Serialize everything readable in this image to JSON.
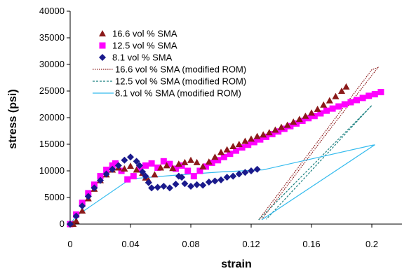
{
  "chart_data": {
    "type": "scatter",
    "xlabel": "strain",
    "ylabel": "stress (psi)",
    "xlim": [
      0,
      0.22
    ],
    "ylim": [
      0,
      40000
    ],
    "x_ticks": [
      "0",
      "0.04",
      "0.08",
      "0.12",
      "0.16",
      "0.2"
    ],
    "y_ticks": [
      "0",
      "5000",
      "10000",
      "15000",
      "20000",
      "25000",
      "30000",
      "35000",
      "40000"
    ],
    "grid": false,
    "legend_position": "top-left",
    "series": [
      {
        "name": "16.6 vol % SMA",
        "kind": "markers",
        "marker": "triangle",
        "color": "#8b1a1a",
        "points": [
          [
            0.002,
            0
          ],
          [
            0.004,
            600
          ],
          [
            0.008,
            2500
          ],
          [
            0.012,
            4800
          ],
          [
            0.016,
            6600
          ],
          [
            0.02,
            8200
          ],
          [
            0.024,
            9300
          ],
          [
            0.028,
            10200
          ],
          [
            0.032,
            10600
          ],
          [
            0.036,
            10400
          ],
          [
            0.04,
            10900
          ],
          [
            0.044,
            10200
          ],
          [
            0.048,
            9600
          ],
          [
            0.05,
            8700
          ],
          [
            0.052,
            8200
          ],
          [
            0.056,
            9300
          ],
          [
            0.06,
            10600
          ],
          [
            0.064,
            11000
          ],
          [
            0.068,
            10500
          ],
          [
            0.072,
            11300
          ],
          [
            0.076,
            11600
          ],
          [
            0.08,
            12000
          ],
          [
            0.084,
            11600
          ],
          [
            0.088,
            10800
          ],
          [
            0.092,
            11700
          ],
          [
            0.096,
            12600
          ],
          [
            0.1,
            13500
          ],
          [
            0.104,
            14000
          ],
          [
            0.108,
            14600
          ],
          [
            0.112,
            15000
          ],
          [
            0.116,
            15600
          ],
          [
            0.12,
            16000
          ],
          [
            0.124,
            16500
          ],
          [
            0.128,
            16800
          ],
          [
            0.132,
            17200
          ],
          [
            0.136,
            17700
          ],
          [
            0.14,
            18200
          ],
          [
            0.144,
            18600
          ],
          [
            0.148,
            19200
          ],
          [
            0.152,
            19700
          ],
          [
            0.156,
            20300
          ],
          [
            0.16,
            20900
          ],
          [
            0.164,
            21600
          ],
          [
            0.168,
            22400
          ],
          [
            0.172,
            23200
          ],
          [
            0.176,
            24000
          ],
          [
            0.18,
            25000
          ],
          [
            0.183,
            25800
          ]
        ]
      },
      {
        "name": "12.5 vol % SMA",
        "kind": "markers",
        "marker": "square",
        "color": "#ff00ff",
        "points": [
          [
            0,
            0
          ],
          [
            0.004,
            1800
          ],
          [
            0.008,
            4000
          ],
          [
            0.012,
            5800
          ],
          [
            0.016,
            7400
          ],
          [
            0.02,
            9000
          ],
          [
            0.024,
            10200
          ],
          [
            0.028,
            11000
          ],
          [
            0.03,
            11400
          ],
          [
            0.034,
            10000
          ],
          [
            0.038,
            8400
          ],
          [
            0.042,
            9000
          ],
          [
            0.046,
            10400
          ],
          [
            0.05,
            11000
          ],
          [
            0.054,
            11400
          ],
          [
            0.058,
            10600
          ],
          [
            0.062,
            11800
          ],
          [
            0.066,
            11300
          ],
          [
            0.07,
            10400
          ],
          [
            0.074,
            11000
          ],
          [
            0.078,
            10000
          ],
          [
            0.082,
            9000
          ],
          [
            0.086,
            10000
          ],
          [
            0.09,
            10800
          ],
          [
            0.094,
            11500
          ],
          [
            0.098,
            12000
          ],
          [
            0.102,
            12600
          ],
          [
            0.106,
            13200
          ],
          [
            0.11,
            13800
          ],
          [
            0.114,
            14400
          ],
          [
            0.118,
            14900
          ],
          [
            0.122,
            15400
          ],
          [
            0.126,
            15900
          ],
          [
            0.13,
            16400
          ],
          [
            0.134,
            16900
          ],
          [
            0.138,
            17400
          ],
          [
            0.142,
            17900
          ],
          [
            0.146,
            18400
          ],
          [
            0.15,
            18900
          ],
          [
            0.154,
            19400
          ],
          [
            0.158,
            19900
          ],
          [
            0.162,
            20300
          ],
          [
            0.166,
            20800
          ],
          [
            0.17,
            21300
          ],
          [
            0.174,
            21700
          ],
          [
            0.178,
            22100
          ],
          [
            0.182,
            22500
          ],
          [
            0.186,
            22900
          ],
          [
            0.19,
            23300
          ],
          [
            0.194,
            23700
          ],
          [
            0.198,
            24100
          ],
          [
            0.202,
            24400
          ],
          [
            0.206,
            24800
          ]
        ]
      },
      {
        "name": "8.1 vol % SMA",
        "kind": "markers",
        "marker": "diamond",
        "color": "#1a1a8c",
        "points": [
          [
            0,
            0
          ],
          [
            0.004,
            1500
          ],
          [
            0.008,
            3400
          ],
          [
            0.012,
            5200
          ],
          [
            0.016,
            6800
          ],
          [
            0.02,
            8200
          ],
          [
            0.024,
            9400
          ],
          [
            0.028,
            10300
          ],
          [
            0.032,
            11000
          ],
          [
            0.036,
            12000
          ],
          [
            0.04,
            12600
          ],
          [
            0.044,
            11800
          ],
          [
            0.046,
            11000
          ],
          [
            0.048,
            9800
          ],
          [
            0.05,
            9000
          ],
          [
            0.052,
            7800
          ],
          [
            0.054,
            6800
          ],
          [
            0.058,
            6900
          ],
          [
            0.062,
            7100
          ],
          [
            0.066,
            6800
          ],
          [
            0.07,
            7500
          ],
          [
            0.072,
            9000
          ],
          [
            0.074,
            8800
          ],
          [
            0.076,
            7600
          ],
          [
            0.08,
            7100
          ],
          [
            0.084,
            7400
          ],
          [
            0.088,
            7300
          ],
          [
            0.092,
            7900
          ],
          [
            0.096,
            8100
          ],
          [
            0.1,
            8300
          ],
          [
            0.104,
            8800
          ],
          [
            0.108,
            9000
          ],
          [
            0.112,
            9400
          ],
          [
            0.116,
            9700
          ],
          [
            0.12,
            10000
          ],
          [
            0.124,
            10300
          ]
        ]
      },
      {
        "name": "16.6 vol % SMA (modified ROM)",
        "kind": "line",
        "dash": "dotted",
        "color": "#8b1a1a",
        "points": [
          [
            0.125,
            800
          ],
          [
            0.2,
            29000
          ],
          [
            0.204,
            29400
          ],
          [
            0.17,
            17000
          ],
          [
            0.127,
            900
          ]
        ]
      },
      {
        "name": "12.5 vol % SMA  (modified ROM)",
        "kind": "line",
        "dash": "dashed",
        "color": "#1a8080",
        "points": [
          [
            0.125,
            800
          ],
          [
            0.2,
            22300
          ],
          [
            0.13,
            900
          ]
        ]
      },
      {
        "name": "8.1 vol % SMA (modified ROM)",
        "kind": "line",
        "dash": "solid",
        "color": "#33bbee",
        "points": [
          [
            0,
            0
          ],
          [
            0.004,
            1500
          ],
          [
            0.04,
            8500
          ],
          [
            0.07,
            9200
          ],
          [
            0.1,
            9800
          ],
          [
            0.128,
            10200
          ],
          [
            0.2,
            14800
          ],
          [
            0.202,
            14900
          ],
          [
            0.127,
            800
          ]
        ]
      }
    ]
  }
}
